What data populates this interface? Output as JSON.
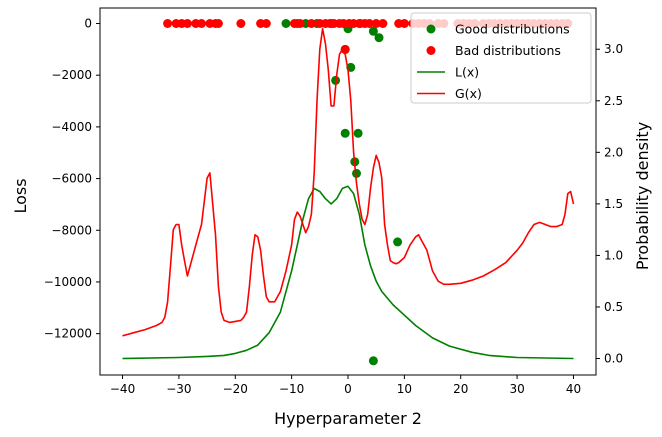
{
  "chart_data": {
    "type": "scatter",
    "xlabel": "Hyperparameter 2",
    "ylabel": "Loss",
    "y2label": "Probability density",
    "xlim": [
      -44,
      44
    ],
    "ylim": [
      -13600,
      600
    ],
    "y2lim": [
      -0.16,
      3.4
    ],
    "x_ticks": [
      -40,
      -30,
      -20,
      -10,
      0,
      10,
      20,
      30,
      40
    ],
    "y_ticks": [
      0,
      -2000,
      -4000,
      -6000,
      -8000,
      -10000,
      -12000
    ],
    "y2_ticks": [
      0.0,
      0.5,
      1.0,
      1.5,
      2.0,
      2.5,
      3.0
    ],
    "legend_position": "upper-right",
    "series": [
      {
        "name": "Good distributions",
        "kind": "scatter",
        "axis": "left",
        "color": "#008000",
        "points": [
          [
            -11,
            0
          ],
          [
            -9,
            0
          ],
          [
            -7.5,
            0
          ],
          [
            -5.5,
            0
          ],
          [
            -3,
            0
          ],
          [
            0,
            -200
          ],
          [
            2,
            0
          ],
          [
            4.5,
            -300
          ],
          [
            5.5,
            -550
          ],
          [
            -2.2,
            -2200
          ],
          [
            -0.5,
            -1000
          ],
          [
            0.5,
            -1700
          ],
          [
            -0.5,
            -4250
          ],
          [
            1.8,
            -4250
          ],
          [
            1.2,
            -5350
          ],
          [
            1.5,
            -5800
          ],
          [
            8.8,
            -8450
          ],
          [
            4.5,
            -13050
          ]
        ]
      },
      {
        "name": "Bad distributions",
        "kind": "scatter",
        "axis": "left",
        "color": "#ff0000",
        "points": [
          [
            -32,
            0
          ],
          [
            -30.5,
            0
          ],
          [
            -29.5,
            0
          ],
          [
            -28.5,
            0
          ],
          [
            -27,
            0
          ],
          [
            -26,
            0
          ],
          [
            -24.5,
            0
          ],
          [
            -23.5,
            0
          ],
          [
            -23,
            0
          ],
          [
            -19,
            0
          ],
          [
            -15.5,
            0
          ],
          [
            -14.5,
            0
          ],
          [
            -9.5,
            0
          ],
          [
            -8.5,
            0
          ],
          [
            -6.5,
            0
          ],
          [
            -5,
            0
          ],
          [
            -4,
            0
          ],
          [
            -3.2,
            0
          ],
          [
            -2.5,
            0
          ],
          [
            -1.5,
            0
          ],
          [
            -0.8,
            0
          ],
          [
            0.2,
            0
          ],
          [
            1,
            0
          ],
          [
            2.2,
            0
          ],
          [
            3,
            0
          ],
          [
            3.8,
            0
          ],
          [
            5,
            0
          ],
          [
            6.2,
            0
          ],
          [
            9,
            0
          ],
          [
            10,
            0
          ],
          [
            11.5,
            0
          ],
          [
            12.5,
            0
          ],
          [
            13.5,
            0
          ],
          [
            14.5,
            0
          ],
          [
            16,
            0
          ],
          [
            17,
            0
          ],
          [
            19.5,
            0
          ],
          [
            20.5,
            0
          ],
          [
            21.5,
            0
          ],
          [
            22.5,
            0
          ],
          [
            24,
            0
          ],
          [
            25,
            0
          ],
          [
            26,
            0
          ],
          [
            27,
            0
          ],
          [
            28,
            0
          ],
          [
            29,
            0
          ],
          [
            30,
            0
          ],
          [
            31,
            0
          ],
          [
            32,
            0
          ],
          [
            33,
            0
          ],
          [
            34,
            0
          ],
          [
            35,
            0
          ],
          [
            36,
            0
          ],
          [
            37,
            0
          ],
          [
            38,
            0
          ],
          [
            39,
            0
          ],
          [
            -0.5,
            -1000
          ]
        ]
      },
      {
        "name": "L(x)",
        "kind": "line",
        "axis": "right",
        "color": "#008000",
        "points": [
          [
            -40,
            0.0
          ],
          [
            -30,
            0.01
          ],
          [
            -25,
            0.02
          ],
          [
            -22,
            0.03
          ],
          [
            -20,
            0.05
          ],
          [
            -18,
            0.08
          ],
          [
            -16,
            0.13
          ],
          [
            -14,
            0.25
          ],
          [
            -12,
            0.45
          ],
          [
            -10,
            0.85
          ],
          [
            -9,
            1.1
          ],
          [
            -8,
            1.35
          ],
          [
            -7,
            1.55
          ],
          [
            -6,
            1.65
          ],
          [
            -5,
            1.62
          ],
          [
            -4,
            1.55
          ],
          [
            -3,
            1.5
          ],
          [
            -2,
            1.55
          ],
          [
            -1,
            1.65
          ],
          [
            0,
            1.67
          ],
          [
            1,
            1.6
          ],
          [
            2,
            1.4
          ],
          [
            3,
            1.1
          ],
          [
            4,
            0.9
          ],
          [
            5,
            0.75
          ],
          [
            6,
            0.65
          ],
          [
            8,
            0.52
          ],
          [
            10,
            0.42
          ],
          [
            12,
            0.32
          ],
          [
            15,
            0.2
          ],
          [
            18,
            0.12
          ],
          [
            22,
            0.06
          ],
          [
            25,
            0.03
          ],
          [
            30,
            0.01
          ],
          [
            40,
            0.0
          ]
        ]
      },
      {
        "name": "G(x)",
        "kind": "line",
        "axis": "right",
        "color": "#ff0000",
        "points": [
          [
            -40,
            0.22
          ],
          [
            -38,
            0.25
          ],
          [
            -36,
            0.28
          ],
          [
            -34,
            0.32
          ],
          [
            -33,
            0.35
          ],
          [
            -32.5,
            0.4
          ],
          [
            -32,
            0.55
          ],
          [
            -31.5,
            0.9
          ],
          [
            -31,
            1.25
          ],
          [
            -30.5,
            1.3
          ],
          [
            -30,
            1.3
          ],
          [
            -29.5,
            1.1
          ],
          [
            -29,
            0.95
          ],
          [
            -28.5,
            0.8
          ],
          [
            -28,
            0.9
          ],
          [
            -27,
            1.1
          ],
          [
            -26,
            1.3
          ],
          [
            -25,
            1.75
          ],
          [
            -24.5,
            1.8
          ],
          [
            -24,
            1.5
          ],
          [
            -23.5,
            1.2
          ],
          [
            -23,
            0.7
          ],
          [
            -22.5,
            0.45
          ],
          [
            -22,
            0.37
          ],
          [
            -21,
            0.35
          ],
          [
            -20,
            0.36
          ],
          [
            -19,
            0.37
          ],
          [
            -18.5,
            0.4
          ],
          [
            -18,
            0.45
          ],
          [
            -17.5,
            0.7
          ],
          [
            -17,
            1.0
          ],
          [
            -16.5,
            1.2
          ],
          [
            -16,
            1.18
          ],
          [
            -15.5,
            1.05
          ],
          [
            -15,
            0.8
          ],
          [
            -14.5,
            0.6
          ],
          [
            -14,
            0.55
          ],
          [
            -13,
            0.55
          ],
          [
            -12,
            0.65
          ],
          [
            -11,
            0.85
          ],
          [
            -10,
            1.1
          ],
          [
            -9.5,
            1.35
          ],
          [
            -9,
            1.42
          ],
          [
            -8.5,
            1.38
          ],
          [
            -8,
            1.3
          ],
          [
            -7.5,
            1.22
          ],
          [
            -7,
            1.28
          ],
          [
            -6.5,
            1.4
          ],
          [
            -6,
            1.8
          ],
          [
            -5.5,
            2.5
          ],
          [
            -5,
            3.0
          ],
          [
            -4.5,
            3.2
          ],
          [
            -4,
            3.05
          ],
          [
            -3.5,
            2.8
          ],
          [
            -3,
            2.45
          ],
          [
            -2.5,
            2.45
          ],
          [
            -2,
            2.75
          ],
          [
            -1.5,
            2.95
          ],
          [
            -1,
            3.0
          ],
          [
            -0.5,
            2.95
          ],
          [
            0,
            2.8
          ],
          [
            0.5,
            2.5
          ],
          [
            1,
            2.0
          ],
          [
            1.5,
            1.7
          ],
          [
            2,
            1.5
          ],
          [
            2.5,
            1.35
          ],
          [
            3,
            1.3
          ],
          [
            3.5,
            1.4
          ],
          [
            4,
            1.65
          ],
          [
            4.5,
            1.85
          ],
          [
            5,
            1.97
          ],
          [
            5.5,
            1.9
          ],
          [
            6,
            1.75
          ],
          [
            6.5,
            1.3
          ],
          [
            7,
            1.1
          ],
          [
            7.5,
            0.95
          ],
          [
            8,
            0.93
          ],
          [
            8.5,
            0.92
          ],
          [
            9,
            0.93
          ],
          [
            10,
            0.98
          ],
          [
            11,
            1.1
          ],
          [
            12,
            1.18
          ],
          [
            12.5,
            1.2
          ],
          [
            13,
            1.15
          ],
          [
            14,
            1.05
          ],
          [
            15,
            0.85
          ],
          [
            16,
            0.75
          ],
          [
            17,
            0.72
          ],
          [
            18,
            0.72
          ],
          [
            20,
            0.73
          ],
          [
            22,
            0.76
          ],
          [
            24,
            0.8
          ],
          [
            26,
            0.86
          ],
          [
            28,
            0.93
          ],
          [
            30,
            1.05
          ],
          [
            31,
            1.12
          ],
          [
            32,
            1.22
          ],
          [
            33,
            1.3
          ],
          [
            34,
            1.32
          ],
          [
            35,
            1.3
          ],
          [
            36,
            1.28
          ],
          [
            37,
            1.28
          ],
          [
            38,
            1.3
          ],
          [
            38.5,
            1.4
          ],
          [
            39,
            1.6
          ],
          [
            39.5,
            1.62
          ],
          [
            40,
            1.5
          ]
        ]
      }
    ]
  }
}
